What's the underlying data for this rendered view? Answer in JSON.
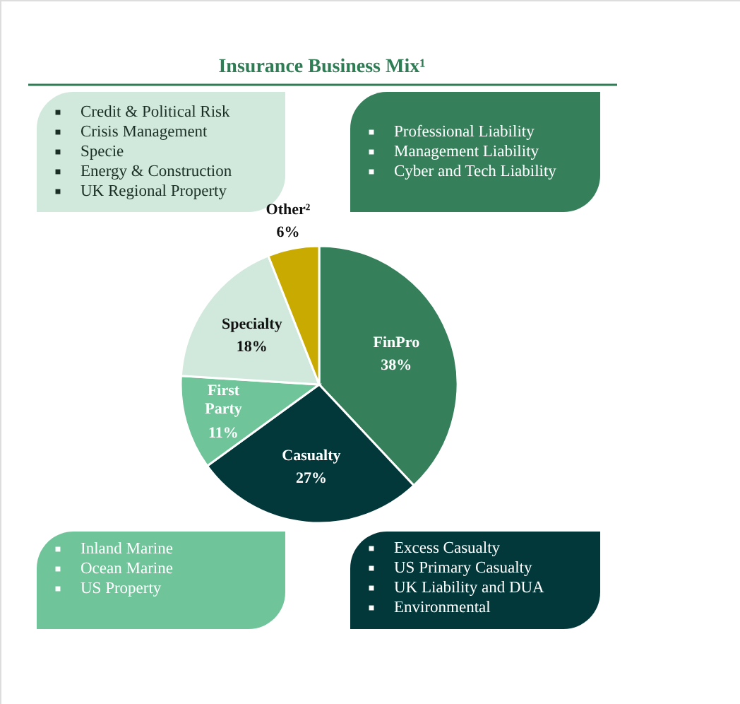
{
  "chart_data": {
    "type": "pie",
    "title": "Insurance Business Mix¹",
    "categories": [
      "FinPro",
      "Casualty",
      "First Party",
      "Specialty",
      "Other²"
    ],
    "values": [
      38,
      27,
      11,
      18,
      6
    ],
    "value_labels": [
      "38%",
      "27%",
      "11%",
      "18%",
      "6%"
    ],
    "colors": [
      "#35805a",
      "#03383a",
      "#70c49a",
      "#d1e8dc",
      "#c9aa00"
    ],
    "annotations": [
      "Credit & Political Risk\nCrisis Management\nSpecie\nEnergy & Construction\nUK Regional Property",
      "Professional Liability\nManagement Liability\nCyber and Tech Liability",
      "Inland Marine\nOcean Marine\nUS Property",
      "Excess Casualty\nUS Primary Casualty\nUK Liability and DUA\nEnvironmental"
    ]
  }
}
